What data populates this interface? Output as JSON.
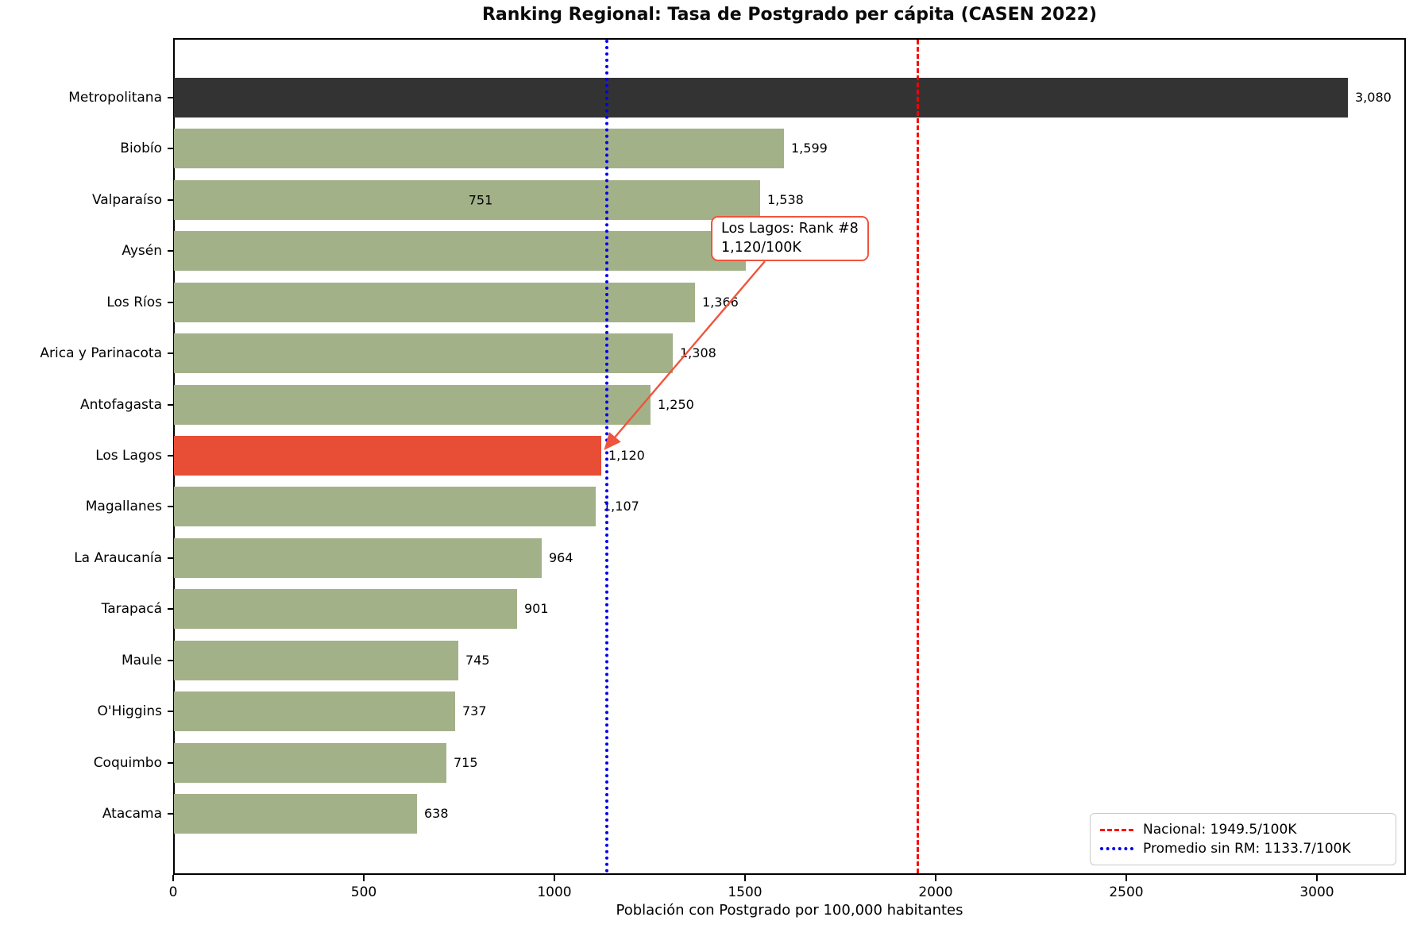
{
  "title": "Ranking Regional: Tasa de Postgrado per cápita (CASEN 2022)",
  "xlabel": "Población con Postgrado por 100,000 habitantes",
  "colors": {
    "bar_default": "#a3b189",
    "bar_top": "#333333",
    "bar_highlight": "#e84d35",
    "national_line": "#ff0000",
    "average_line": "#0000ee",
    "annotation_border": "#f0543c",
    "frame": "#000000"
  },
  "chart_data": {
    "type": "bar",
    "orientation": "horizontal",
    "title": "Ranking Regional: Tasa de Postgrado per cápita (CASEN 2022)",
    "xlabel": "Población con Postgrado por 100,000 habitantes",
    "xlim": [
      0,
      3233
    ],
    "x_ticks": [
      0,
      500,
      1000,
      1500,
      2000,
      2500,
      3000
    ],
    "grid": false,
    "categories": [
      "Metropolitana",
      "Biobío",
      "Valparaíso",
      "Aysén",
      "Los Ríos",
      "Arica y Parinacota",
      "Antofagasta",
      "Los Lagos",
      "Magallanes",
      "La Araucanía",
      "Tarapacá",
      "Maule",
      "O'Higgins",
      "Coquimbo",
      "Atacama"
    ],
    "values": [
      3080,
      1599,
      1538,
      1500,
      1366,
      1308,
      1250,
      1120,
      1107,
      964,
      901,
      745,
      737,
      715,
      638
    ],
    "value_labels": [
      "3,080",
      "1,599",
      "1,538",
      "",
      "1,366",
      "1,308",
      "1,250",
      "1,120",
      "1,107",
      "964",
      "901",
      "745",
      "737",
      "715",
      "638"
    ],
    "bar_roles": [
      "top",
      "default",
      "default",
      "default",
      "default",
      "default",
      "default",
      "highlight",
      "default",
      "default",
      "default",
      "default",
      "default",
      "default",
      "default"
    ],
    "inner_label": {
      "text": "751",
      "row": "Valparaíso",
      "x_data": 806
    },
    "reference_lines": [
      {
        "name": "national",
        "value": 1949.5,
        "style": "dashed",
        "color": "#ff0000",
        "label": "Nacional: 1949.5/100K"
      },
      {
        "name": "average_no_rm",
        "value": 1133.7,
        "style": "dotted",
        "color": "#0000ee",
        "label": "Promedio sin RM: 1133.7/100K"
      }
    ],
    "annotation": {
      "line1": "Los Lagos: Rank #8",
      "line2": "1,120/100K",
      "target_category": "Los Lagos",
      "target_value": 1120
    },
    "legend_position": "lower right"
  },
  "legend": {
    "items": [
      {
        "label": "Nacional: 1949.5/100K",
        "style": "dashed",
        "color": "#ff0000"
      },
      {
        "label": "Promedio sin RM: 1133.7/100K",
        "style": "dotted",
        "color": "#0000ee"
      }
    ]
  }
}
